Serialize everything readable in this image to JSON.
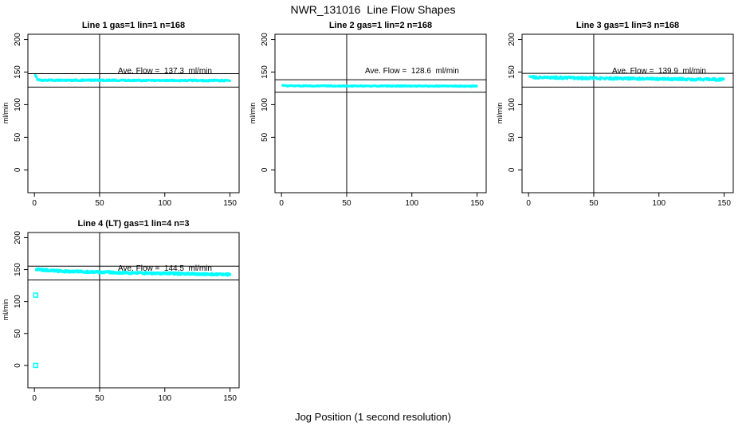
{
  "title": "NWR_131016  Line Flow Shapes",
  "xlabel": "Jog Position (1 second resolution)",
  "colors": {
    "points": "#00FFFF",
    "axis": "#000000",
    "background": "#FFFFFF"
  },
  "axes": {
    "x_ticks": [
      0,
      50,
      100,
      150
    ],
    "y_ticks": [
      0,
      50,
      100,
      150,
      200
    ],
    "x_range": [
      -5,
      157
    ],
    "y_range": [
      -35,
      208
    ],
    "y_unit": "ml/min",
    "vline_x": 50,
    "grid": false
  },
  "chart_data": [
    {
      "type": "scatter",
      "title": "Line 1 gas=1 lin=1 n=168",
      "n": 168,
      "ave_flow": 137.3,
      "ave_flow_label": "Ave. Flow =  137.3  ml/min",
      "annotation_xy": [
        100,
        150
      ],
      "ref_lines": [
        147.6,
        127.0
      ],
      "profile": [
        [
          0.6,
          144.5
        ],
        [
          1.2,
          143.0
        ],
        [
          2.2,
          139.5
        ],
        [
          4,
          137.6
        ],
        [
          80,
          137.3
        ],
        [
          150,
          137.0
        ]
      ],
      "jitter": 1.2,
      "outliers": []
    },
    {
      "type": "scatter",
      "title": "Line 2 gas=1 lin=2 n=168",
      "n": 168,
      "ave_flow": 128.6,
      "ave_flow_label": "Ave. Flow =  128.6  ml/min",
      "annotation_xy": [
        100,
        150
      ],
      "ref_lines": [
        138.2,
        119.0
      ],
      "profile": [
        [
          0.8,
          130.5
        ],
        [
          2.5,
          128.9
        ],
        [
          80,
          128.6
        ],
        [
          150,
          128.4
        ]
      ],
      "jitter": 0.9,
      "outliers": []
    },
    {
      "type": "scatter",
      "title": "Line 3 gas=1 lin=3 n=168",
      "n": 168,
      "ave_flow": 139.9,
      "ave_flow_label": "Ave. Flow =  139.9  ml/min",
      "annotation_xy": [
        100,
        150
      ],
      "ref_lines": [
        148.0,
        127.0
      ],
      "profile": [
        [
          0.8,
          143.5
        ],
        [
          5,
          142.0
        ],
        [
          40,
          140.8
        ],
        [
          100,
          139.5
        ],
        [
          150,
          138.4
        ]
      ],
      "jitter": 1.9,
      "outliers": []
    },
    {
      "type": "scatter",
      "title": "Line 4 (LT) gas=1 lin=4 n=3",
      "n": 3,
      "ave_flow": 144.5,
      "ave_flow_label": "Ave. Flow =  144.5  ml/min",
      "annotation_xy": [
        100,
        150
      ],
      "ref_lines": [
        155.3,
        133.7
      ],
      "profile": [
        [
          1.5,
          150.5
        ],
        [
          4,
          149.5
        ],
        [
          20,
          147.5
        ],
        [
          60,
          145.5
        ],
        [
          100,
          144.0
        ],
        [
          150,
          142.2
        ]
      ],
      "jitter": 1.5,
      "outliers": [
        [
          1,
          110
        ],
        [
          1,
          0
        ]
      ]
    }
  ]
}
